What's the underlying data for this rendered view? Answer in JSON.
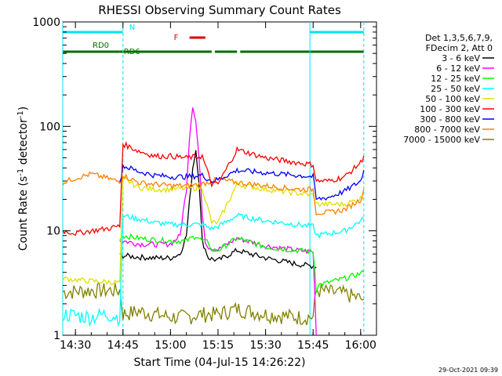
{
  "chart_data": {
    "type": "line",
    "title": "RHESSI Observing Summary Count Rates",
    "xlabel": "Start Time (04-Jul-15 14:26:22)",
    "ylabel_main": "Count Rate (s",
    "ylabel_sup1": "-1",
    "ylabel_mid": " detector",
    "ylabel_sup2": "-1",
    "ylabel_end": ")",
    "yscale": "log",
    "ylim": [
      1,
      1000
    ],
    "x_range_minutes": [
      "14:26",
      "16:05"
    ],
    "x_ticks": [
      "14:30",
      "14:45",
      "15:00",
      "15:15",
      "15:30",
      "15:45",
      "16:00"
    ],
    "y_ticks": [
      "1",
      "10",
      "100",
      "1000"
    ],
    "timestamp": "29-Oct-2021 09:39",
    "legend": {
      "header": [
        "Det 1,3,5,6,7,9,",
        "FDecim 2, Att 0"
      ],
      "position": "right"
    },
    "flags": [
      {
        "label": "N",
        "color": "#00e5ee",
        "segments": [
          [
            "14:26",
            "14:45"
          ],
          [
            "15:44",
            "16:01"
          ]
        ]
      },
      {
        "label": "F",
        "color": "#e00000",
        "segments": [
          [
            "15:06",
            "15:11"
          ]
        ]
      },
      {
        "label": "RD0",
        "color": "#007000",
        "segments": [
          [
            "14:26",
            "14:44"
          ]
        ]
      },
      {
        "label": "RD6",
        "color": "#007000",
        "segments": [
          [
            "14:44",
            "15:13"
          ],
          [
            "15:14",
            "15:21"
          ],
          [
            "15:22",
            "16:01"
          ]
        ]
      }
    ],
    "vlines": [
      {
        "time": "14:26",
        "color": "#00e5ee",
        "style": "solid"
      },
      {
        "time": "14:45",
        "color": "#00e5ee",
        "style": "dashed"
      },
      {
        "time": "15:44",
        "color": "#00e5ee",
        "style": "solid"
      },
      {
        "time": "16:01",
        "color": "#00e5ee",
        "style": "dashed"
      }
    ],
    "series": [
      {
        "name": "3 - 6 keV",
        "color": "#000000",
        "times": [
          "14:44",
          "14:45",
          "14:50",
          "14:55",
          "15:00",
          "15:03",
          "15:05",
          "15:07",
          "15:08",
          "15:09",
          "15:10",
          "15:12",
          "15:13",
          "15:15",
          "15:21",
          "15:30",
          "15:40",
          "15:45",
          "15:46"
        ],
        "values": [
          5.8,
          5.8,
          5.6,
          5.5,
          5.5,
          6,
          9,
          40,
          60,
          30,
          8,
          5.5,
          5.4,
          5.2,
          6.5,
          5.5,
          4.8,
          4.6,
          4.5
        ]
      },
      {
        "name": "6 - 12 keV",
        "color": "#ff00ff",
        "times": [
          "14:44",
          "14:45",
          "14:50",
          "14:55",
          "15:00",
          "15:03",
          "15:05",
          "15:06",
          "15:07",
          "15:08",
          "15:09",
          "15:10",
          "15:11",
          "15:12",
          "15:13",
          "15:15",
          "15:21",
          "15:30",
          "15:40",
          "15:45",
          "15:46"
        ],
        "values": [
          8,
          8,
          7.5,
          7.4,
          7.5,
          9,
          25,
          80,
          160,
          110,
          50,
          15,
          8,
          7,
          6.8,
          6.6,
          8.5,
          7.2,
          6.5,
          6.3,
          1.0
        ]
      },
      {
        "name": "12 - 25 keV",
        "color": "#00ff00",
        "times": [
          "14:44",
          "14:45",
          "14:50",
          "14:55",
          "15:00",
          "15:05",
          "15:08",
          "15:10",
          "15:12",
          "15:13",
          "15:15",
          "15:21",
          "15:30",
          "15:40",
          "15:45",
          "15:46",
          "15:55",
          "16:01"
        ],
        "values": [
          8.5,
          9,
          8.5,
          8.2,
          8,
          8,
          9,
          8,
          7.8,
          6.5,
          6.5,
          8.5,
          7,
          6.5,
          6.3,
          3,
          3.5,
          4
        ]
      },
      {
        "name": "25 - 50 keV",
        "color": "#00ffff",
        "times": [
          "14:26",
          "14:35",
          "14:40",
          "14:44",
          "14:45",
          "14:50",
          "14:55",
          "15:00",
          "15:05",
          "15:10",
          "15:13",
          "15:15",
          "15:21",
          "15:30",
          "15:40",
          "15:45",
          "15:46",
          "15:55",
          "16:01"
        ],
        "values": [
          1.6,
          1.5,
          1.6,
          1.5,
          14,
          13,
          12,
          11.5,
          11.5,
          11.5,
          10.5,
          11,
          14,
          12.5,
          11.5,
          11,
          9,
          10,
          13
        ]
      },
      {
        "name": "50 - 100 keV",
        "color": "#e0e000",
        "times": [
          "14:26",
          "14:35",
          "14:44",
          "14:45",
          "14:50",
          "14:55",
          "15:00",
          "15:05",
          "15:10",
          "15:13",
          "15:15",
          "15:21",
          "15:30",
          "15:40",
          "15:45",
          "15:46",
          "15:55",
          "16:01"
        ],
        "values": [
          3.5,
          3.3,
          3.2,
          32,
          26,
          25,
          25,
          25.5,
          26,
          12,
          12,
          28,
          25,
          23,
          22,
          18,
          18,
          21
        ]
      },
      {
        "name": "100 - 300 keV",
        "color": "#ff0000",
        "times": [
          "14:26",
          "14:30",
          "14:35",
          "14:40",
          "14:43",
          "14:44",
          "14:45",
          "14:50",
          "14:55",
          "15:00",
          "15:05",
          "15:10",
          "15:13",
          "15:15",
          "15:21",
          "15:30",
          "15:40",
          "15:45",
          "15:46",
          "15:50",
          "15:55",
          "16:00",
          "16:01"
        ],
        "values": [
          10,
          9.5,
          10,
          10.5,
          11,
          11,
          68,
          58,
          52,
          52,
          50,
          52,
          28,
          28,
          60,
          50,
          45,
          43,
          30,
          30,
          33,
          45,
          52
        ]
      },
      {
        "name": "300 - 800 keV",
        "color": "#0000ff",
        "times": [
          "14:44",
          "14:45",
          "14:50",
          "14:55",
          "15:00",
          "15:05",
          "15:10",
          "15:13",
          "15:15",
          "15:21",
          "15:30",
          "15:40",
          "15:45",
          "15:46",
          "15:50",
          "15:55",
          "16:00",
          "16:01"
        ],
        "values": [
          28,
          42,
          37,
          34,
          33,
          33,
          34,
          30,
          31,
          38,
          36,
          34,
          33,
          20,
          21,
          24,
          30,
          38
        ]
      },
      {
        "name": "800 - 7000 keV",
        "color": "#ff8000",
        "times": [
          "14:26",
          "14:30",
          "14:35",
          "14:40",
          "14:43",
          "14:44",
          "14:45",
          "14:50",
          "14:55",
          "15:00",
          "15:05",
          "15:10",
          "15:13",
          "15:15",
          "15:21",
          "15:30",
          "15:40",
          "15:45",
          "15:46",
          "15:50",
          "15:55",
          "16:00",
          "16:01"
        ],
        "values": [
          29,
          32,
          35,
          32,
          30,
          30,
          34,
          29,
          28,
          27,
          27,
          28,
          30,
          31,
          29,
          27,
          25,
          25,
          15,
          15,
          16,
          20,
          25
        ]
      },
      {
        "name": "7000 - 15000 keV",
        "color": "#808000",
        "times": [
          "14:26",
          "14:35",
          "14:44",
          "14:45",
          "14:50",
          "14:55",
          "15:00",
          "15:05",
          "15:10",
          "15:15",
          "15:21",
          "15:30",
          "15:40",
          "15:45",
          "15:46",
          "15:55",
          "16:01"
        ],
        "values": [
          2.6,
          2.7,
          2.7,
          1.6,
          1.7,
          1.6,
          1.5,
          1.5,
          1.6,
          1.6,
          1.8,
          1.6,
          1.5,
          1.5,
          2.7,
          2.5,
          2.2
        ]
      }
    ]
  }
}
